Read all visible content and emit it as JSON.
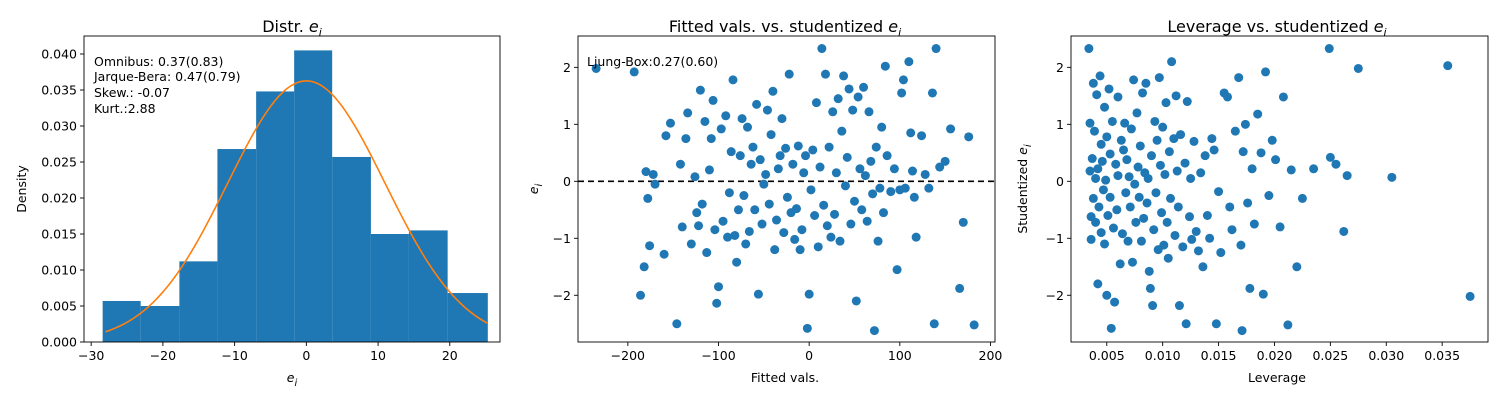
{
  "chart_data": [
    {
      "type": "bar",
      "title": "Distr. ",
      "title_var": "e",
      "title_sub": "i",
      "xlabel_var": "e",
      "xlabel_sub": "i",
      "ylabel": "Density",
      "xlim": [
        -31,
        27
      ],
      "ylim": [
        0,
        0.0425
      ],
      "xticks": [
        -30,
        -20,
        -10,
        0,
        10,
        20
      ],
      "xtick_labels": [
        "−30",
        "−20",
        "−10",
        "0",
        "10",
        "20"
      ],
      "yticks": [
        0,
        0.005,
        0.01,
        0.015,
        0.02,
        0.025,
        0.03,
        0.035,
        0.04
      ],
      "ytick_labels": [
        "0.000",
        "0.005",
        "0.010",
        "0.015",
        "0.020",
        "0.025",
        "0.030",
        "0.035",
        "0.040"
      ],
      "bins": [
        [
          -28.4,
          -23.1,
          0.0057
        ],
        [
          -23.1,
          -17.7,
          0.005
        ],
        [
          -17.7,
          -12.4,
          0.0112
        ],
        [
          -12.4,
          -7.0,
          0.0268
        ],
        [
          -7.0,
          -1.7,
          0.0348
        ],
        [
          -1.7,
          3.6,
          0.0405
        ],
        [
          3.6,
          9.0,
          0.0257
        ],
        [
          9.0,
          14.3,
          0.015
        ],
        [
          14.3,
          19.7,
          0.0155
        ],
        [
          19.7,
          25.3,
          0.0068
        ]
      ],
      "density_curve": {
        "mean": 0,
        "sd": 11,
        "range": [
          -28,
          25.2
        ]
      },
      "annotations": [
        "Omnibus: 0.37(0.83)",
        "Jarque-Bera: 0.47(0.79)",
        "Skew.: -0.07",
        "Kurt.:2.88"
      ],
      "colors": {
        "bar": "#1f77b4",
        "curve": "#ff7f0e"
      }
    },
    {
      "type": "scatter",
      "title": "Fitted vals. vs. studentized ",
      "title_var": "e",
      "title_sub": "i",
      "xlabel": "Fitted vals.",
      "ylabel_var": "e",
      "ylabel_sub": "i",
      "xlim": [
        -255,
        205
      ],
      "ylim": [
        -2.82,
        2.55
      ],
      "xticks": [
        -200,
        -100,
        0,
        100,
        200
      ],
      "xtick_labels": [
        "−200",
        "−100",
        "0",
        "100",
        "200"
      ],
      "yticks": [
        -2,
        -1,
        0,
        1,
        2
      ],
      "ytick_labels": [
        "−2",
        "−1",
        "0",
        "1",
        "2"
      ],
      "hline": 0,
      "annotation": "Ljung-Box:0.27(0.60)",
      "colors": {
        "marker": "#1f77b4",
        "line": "#000000"
      },
      "points": [
        [
          -235,
          1.98
        ],
        [
          -193,
          1.92
        ],
        [
          -186,
          -2.0
        ],
        [
          -182,
          -1.5
        ],
        [
          -180,
          0.17
        ],
        [
          -178,
          -0.3
        ],
        [
          -176,
          -1.13
        ],
        [
          -172,
          0.12
        ],
        [
          -170,
          -0.05
        ],
        [
          -160,
          -1.28
        ],
        [
          -158,
          0.8
        ],
        [
          -153,
          1.02
        ],
        [
          -146,
          -2.5
        ],
        [
          -142,
          0.3
        ],
        [
          -140,
          -0.8
        ],
        [
          -136,
          0.75
        ],
        [
          -134,
          1.2
        ],
        [
          -130,
          -1.1
        ],
        [
          -126,
          0.08
        ],
        [
          -124,
          -0.55
        ],
        [
          -122,
          -0.78
        ],
        [
          -120,
          1.6
        ],
        [
          -118,
          -0.4
        ],
        [
          -115,
          1.05
        ],
        [
          -113,
          -1.25
        ],
        [
          -110,
          0.2
        ],
        [
          -108,
          0.75
        ],
        [
          -106,
          1.42
        ],
        [
          -104,
          -0.85
        ],
        [
          -102,
          -2.14
        ],
        [
          -100,
          -1.85
        ],
        [
          -97,
          0.92
        ],
        [
          -95,
          -0.7
        ],
        [
          -92,
          1.15
        ],
        [
          -90,
          -0.98
        ],
        [
          -88,
          -0.2
        ],
        [
          -86,
          0.52
        ],
        [
          -84,
          1.78
        ],
        [
          -82,
          -0.95
        ],
        [
          -80,
          -1.42
        ],
        [
          -78,
          -0.5
        ],
        [
          -76,
          0.45
        ],
        [
          -74,
          1.1
        ],
        [
          -72,
          -0.25
        ],
        [
          -70,
          -1.1
        ],
        [
          -68,
          0.95
        ],
        [
          -66,
          -0.88
        ],
        [
          -64,
          0.3
        ],
        [
          -62,
          0.6
        ],
        [
          -60,
          -0.5
        ],
        [
          -58,
          1.35
        ],
        [
          -56,
          -1.98
        ],
        [
          -54,
          0.38
        ],
        [
          -52,
          -0.75
        ],
        [
          -50,
          -0.05
        ],
        [
          -48,
          0.12
        ],
        [
          -46,
          1.25
        ],
        [
          -44,
          -0.4
        ],
        [
          -42,
          0.82
        ],
        [
          -40,
          1.58
        ],
        [
          -38,
          -1.2
        ],
        [
          -36,
          -0.68
        ],
        [
          -34,
          0.22
        ],
        [
          -32,
          0.45
        ],
        [
          -30,
          1.1
        ],
        [
          -28,
          -0.9
        ],
        [
          -26,
          0.58
        ],
        [
          -24,
          -0.28
        ],
        [
          -22,
          1.88
        ],
        [
          -20,
          -0.55
        ],
        [
          -18,
          0.3
        ],
        [
          -16,
          -1.02
        ],
        [
          -14,
          -0.48
        ],
        [
          -12,
          0.62
        ],
        [
          -10,
          -1.2
        ],
        [
          -8,
          -0.85
        ],
        [
          -6,
          0.15
        ],
        [
          -4,
          0.45
        ],
        [
          -2,
          -2.58
        ],
        [
          0,
          -1.98
        ],
        [
          2,
          -0.15
        ],
        [
          4,
          0.55
        ],
        [
          6,
          -0.6
        ],
        [
          8,
          1.38
        ],
        [
          10,
          -1.15
        ],
        [
          12,
          0.25
        ],
        [
          14,
          2.33
        ],
        [
          16,
          -0.42
        ],
        [
          18,
          1.88
        ],
        [
          20,
          -0.78
        ],
        [
          22,
          0.6
        ],
        [
          24,
          -0.98
        ],
        [
          26,
          1.22
        ],
        [
          28,
          -0.58
        ],
        [
          30,
          0.15
        ],
        [
          32,
          1.45
        ],
        [
          34,
          -1.05
        ],
        [
          36,
          0.88
        ],
        [
          38,
          1.85
        ],
        [
          40,
          -0.08
        ],
        [
          42,
          0.42
        ],
        [
          44,
          1.62
        ],
        [
          46,
          -0.75
        ],
        [
          48,
          1.25
        ],
        [
          50,
          -0.35
        ],
        [
          52,
          -2.1
        ],
        [
          54,
          1.48
        ],
        [
          56,
          0.22
        ],
        [
          58,
          -0.5
        ],
        [
          60,
          1.65
        ],
        [
          62,
          0.1
        ],
        [
          64,
          -0.7
        ],
        [
          66,
          1.22
        ],
        [
          68,
          0.35
        ],
        [
          70,
          -0.22
        ],
        [
          72,
          -2.62
        ],
        [
          74,
          0.6
        ],
        [
          76,
          -1.05
        ],
        [
          78,
          -0.12
        ],
        [
          80,
          0.95
        ],
        [
          82,
          -0.55
        ],
        [
          84,
          2.02
        ],
        [
          86,
          0.45
        ],
        [
          90,
          -0.18
        ],
        [
          94,
          0.22
        ],
        [
          97,
          -1.55
        ],
        [
          100,
          -0.15
        ],
        [
          102,
          1.55
        ],
        [
          104,
          1.78
        ],
        [
          106,
          -0.12
        ],
        [
          110,
          2.1
        ],
        [
          112,
          0.85
        ],
        [
          114,
          0.18
        ],
        [
          116,
          -0.28
        ],
        [
          118,
          -0.98
        ],
        [
          124,
          0.8
        ],
        [
          128,
          0.12
        ],
        [
          132,
          -0.12
        ],
        [
          136,
          1.55
        ],
        [
          138,
          -2.5
        ],
        [
          140,
          2.33
        ],
        [
          144,
          0.25
        ],
        [
          150,
          0.35
        ],
        [
          156,
          0.92
        ],
        [
          166,
          -1.88
        ],
        [
          170,
          -0.72
        ],
        [
          176,
          0.78
        ],
        [
          182,
          -2.52
        ]
      ]
    },
    {
      "type": "scatter",
      "title": "Leverage vs. studentized ",
      "title_var": "e",
      "title_sub": "i",
      "xlabel": "Leverage",
      "ylabel": "Studentized ",
      "ylabel_var": "e",
      "ylabel_sub": "i",
      "xlim": [
        0.0018,
        0.0391
      ],
      "ylim": [
        -2.82,
        2.55
      ],
      "xticks": [
        0.005,
        0.01,
        0.015,
        0.02,
        0.025,
        0.03,
        0.035
      ],
      "xtick_labels": [
        "0.005",
        "0.010",
        "0.015",
        "0.020",
        "0.025",
        "0.030",
        "0.035"
      ],
      "yticks": [
        -2,
        -1,
        0,
        1,
        2
      ],
      "ytick_labels": [
        "−2",
        "−1",
        "0",
        "1",
        "2"
      ],
      "colors": {
        "marker": "#1f77b4"
      },
      "points": [
        [
          0.0034,
          2.33
        ],
        [
          0.0035,
          1.02
        ],
        [
          0.0035,
          0.18
        ],
        [
          0.0036,
          -0.62
        ],
        [
          0.0036,
          -1.02
        ],
        [
          0.0037,
          0.4
        ],
        [
          0.0038,
          1.72
        ],
        [
          0.0038,
          -0.3
        ],
        [
          0.0039,
          0.88
        ],
        [
          0.004,
          0.05
        ],
        [
          0.004,
          -0.72
        ],
        [
          0.0041,
          1.52
        ],
        [
          0.0042,
          -1.8
        ],
        [
          0.0042,
          0.22
        ],
        [
          0.0043,
          -0.45
        ],
        [
          0.0044,
          1.85
        ],
        [
          0.0045,
          0.65
        ],
        [
          0.0045,
          -0.9
        ],
        [
          0.0046,
          0.35
        ],
        [
          0.0047,
          -0.15
        ],
        [
          0.0048,
          1.3
        ],
        [
          0.0048,
          -1.1
        ],
        [
          0.0049,
          0.02
        ],
        [
          0.005,
          -2.0
        ],
        [
          0.005,
          0.78
        ],
        [
          0.0051,
          -0.6
        ],
        [
          0.0052,
          1.62
        ],
        [
          0.0053,
          0.48
        ],
        [
          0.0053,
          -0.28
        ],
        [
          0.0054,
          -2.58
        ],
        [
          0.0055,
          1.05
        ],
        [
          0.0056,
          -0.82
        ],
        [
          0.0057,
          -2.12
        ],
        [
          0.0058,
          0.3
        ],
        [
          0.0059,
          -0.5
        ],
        [
          0.006,
          1.48
        ],
        [
          0.006,
          0.1
        ],
        [
          0.0062,
          -1.45
        ],
        [
          0.0063,
          0.72
        ],
        [
          0.0064,
          -0.92
        ],
        [
          0.0065,
          0.55
        ],
        [
          0.0066,
          1.02
        ],
        [
          0.0067,
          -0.2
        ],
        [
          0.0068,
          0.38
        ],
        [
          0.0069,
          -1.05
        ],
        [
          0.007,
          0.08
        ],
        [
          0.0071,
          -0.45
        ],
        [
          0.0072,
          0.92
        ],
        [
          0.0073,
          -1.42
        ],
        [
          0.0074,
          1.78
        ],
        [
          0.0075,
          -0.05
        ],
        [
          0.0076,
          -0.72
        ],
        [
          0.0077,
          1.2
        ],
        [
          0.0078,
          0.25
        ],
        [
          0.0079,
          -0.28
        ],
        [
          0.008,
          0.62
        ],
        [
          0.0081,
          -1.05
        ],
        [
          0.0082,
          1.55
        ],
        [
          0.0083,
          -0.65
        ],
        [
          0.0084,
          0.15
        ],
        [
          0.0085,
          1.72
        ],
        [
          0.0086,
          -0.38
        ],
        [
          0.0087,
          0.05
        ],
        [
          0.0088,
          -1.58
        ],
        [
          0.0089,
          -1.88
        ],
        [
          0.009,
          0.45
        ],
        [
          0.0091,
          -2.18
        ],
        [
          0.0092,
          -0.85
        ],
        [
          0.0093,
          1.05
        ],
        [
          0.0094,
          -0.2
        ],
        [
          0.0095,
          0.72
        ],
        [
          0.0096,
          -1.2
        ],
        [
          0.0097,
          1.82
        ],
        [
          0.0098,
          0.28
        ],
        [
          0.0099,
          -0.55
        ],
        [
          0.01,
          0.95
        ],
        [
          0.0101,
          -1.12
        ],
        [
          0.0102,
          0.12
        ],
        [
          0.0103,
          1.38
        ],
        [
          0.0104,
          -0.72
        ],
        [
          0.0105,
          -1.35
        ],
        [
          0.0106,
          0.52
        ],
        [
          0.0107,
          -0.3
        ],
        [
          0.0108,
          2.1
        ],
        [
          0.011,
          0.75
        ],
        [
          0.0111,
          -0.95
        ],
        [
          0.0112,
          1.5
        ],
        [
          0.0113,
          0.18
        ],
        [
          0.0114,
          -0.45
        ],
        [
          0.0115,
          -2.18
        ],
        [
          0.0116,
          0.82
        ],
        [
          0.0118,
          -1.15
        ],
        [
          0.012,
          0.32
        ],
        [
          0.0121,
          -2.5
        ],
        [
          0.0122,
          1.4
        ],
        [
          0.0124,
          -0.62
        ],
        [
          0.0125,
          0.05
        ],
        [
          0.0126,
          -1.02
        ],
        [
          0.0128,
          0.7
        ],
        [
          0.013,
          -0.88
        ],
        [
          0.0132,
          -1.22
        ],
        [
          0.0134,
          0.15
        ],
        [
          0.0136,
          -1.5
        ],
        [
          0.0138,
          0.45
        ],
        [
          0.014,
          -0.6
        ],
        [
          0.0142,
          -1.0
        ],
        [
          0.0144,
          0.75
        ],
        [
          0.0146,
          0.55
        ],
        [
          0.0148,
          -2.5
        ],
        [
          0.015,
          -0.18
        ],
        [
          0.0152,
          -1.25
        ],
        [
          0.0155,
          1.55
        ],
        [
          0.0158,
          1.48
        ],
        [
          0.016,
          -0.45
        ],
        [
          0.0162,
          -0.85
        ],
        [
          0.0165,
          0.88
        ],
        [
          0.0168,
          1.82
        ],
        [
          0.017,
          -1.12
        ],
        [
          0.0171,
          -2.62
        ],
        [
          0.0172,
          0.52
        ],
        [
          0.0174,
          1.0
        ],
        [
          0.0176,
          -0.38
        ],
        [
          0.0178,
          -1.88
        ],
        [
          0.018,
          0.22
        ],
        [
          0.0182,
          -0.75
        ],
        [
          0.0185,
          1.18
        ],
        [
          0.0188,
          0.5
        ],
        [
          0.019,
          -1.98
        ],
        [
          0.0192,
          1.92
        ],
        [
          0.0195,
          -0.25
        ],
        [
          0.0198,
          0.72
        ],
        [
          0.0201,
          0.38
        ],
        [
          0.0205,
          -0.8
        ],
        [
          0.0208,
          1.48
        ],
        [
          0.0212,
          -2.52
        ],
        [
          0.0215,
          0.2
        ],
        [
          0.022,
          -1.5
        ],
        [
          0.0225,
          -0.3
        ],
        [
          0.0235,
          0.22
        ],
        [
          0.0249,
          2.33
        ],
        [
          0.025,
          0.42
        ],
        [
          0.0255,
          0.3
        ],
        [
          0.0262,
          -0.88
        ],
        [
          0.0265,
          0.1
        ],
        [
          0.0275,
          1.98
        ],
        [
          0.0305,
          0.07
        ],
        [
          0.0355,
          2.03
        ],
        [
          0.0375,
          -2.02
        ]
      ]
    }
  ]
}
